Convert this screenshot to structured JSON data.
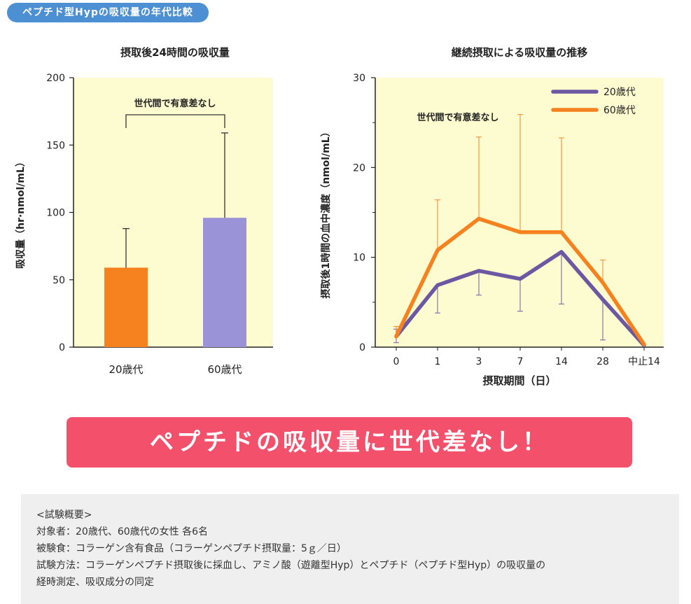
{
  "header": {
    "badge": "ペプチド型Hypの吸収量の年代比較"
  },
  "colors": {
    "age20": "#6b58a3",
    "age20_bar": "#9a93d8",
    "age60": "#f5821f",
    "plot_bg": "#fdfbd0",
    "badge": "#4c8fd3",
    "banner": "#f2506b"
  },
  "chart_data": [
    {
      "type": "bar",
      "title": "摂取後24時間の吸収量",
      "ylabel": "吸収量（hr·nmol/mL）",
      "categories": [
        "20歳代",
        "60歳代"
      ],
      "values": [
        59,
        96
      ],
      "error_upper": [
        88,
        159
      ],
      "ylim": [
        0,
        200
      ],
      "yticks": [
        "0",
        "50",
        "100",
        "150",
        "200"
      ],
      "annotation": "世代間で有意差なし"
    },
    {
      "type": "line",
      "title": "継続摂取による吸収量の推移",
      "xlabel": "摂取期間（日）",
      "ylabel": "摂取後1時間の血中濃度（nmol/mL）",
      "categories": [
        "0",
        "1",
        "3",
        "7",
        "14",
        "28",
        "中止14"
      ],
      "ylim": [
        0,
        30
      ],
      "yticks": [
        "0",
        "10",
        "20",
        "30"
      ],
      "annotation": "世代間で有意差なし",
      "legend_position": "top-right",
      "series": [
        {
          "name": "20歳代",
          "values": [
            1.2,
            6.9,
            8.5,
            7.6,
            10.6,
            5.3,
            0.2
          ],
          "error_lower": [
            0.5,
            3.8,
            5.8,
            4.0,
            4.8,
            0.8,
            0.2
          ],
          "error_upper": [
            2.0,
            6.9,
            8.5,
            7.6,
            10.6,
            5.3,
            0.2
          ]
        },
        {
          "name": "60歳代",
          "values": [
            1.2,
            10.8,
            14.3,
            12.8,
            12.8,
            7.2,
            0.3
          ],
          "error_lower": [
            1.2,
            10.8,
            14.3,
            12.8,
            12.8,
            7.2,
            0.3
          ],
          "error_upper": [
            2.3,
            16.4,
            23.4,
            25.9,
            23.3,
            9.7,
            0.3
          ]
        }
      ]
    }
  ],
  "conclusion": "ペプチドの吸収量に世代差なし！",
  "overview": {
    "heading": "<試験概要>",
    "lines": [
      "対象者：20歳代、60歳代の女性 各6名",
      "被験食：コラーゲン含有食品（コラーゲンペプチド摂取量：5ｇ／日）",
      "試験方法：コラーゲンペプチド摂取後に採血し、アミノ酸（遊離型Hyp）とペプチド（ペプチド型Hyp）の吸収量の",
      "経時測定、吸収成分の同定"
    ]
  }
}
